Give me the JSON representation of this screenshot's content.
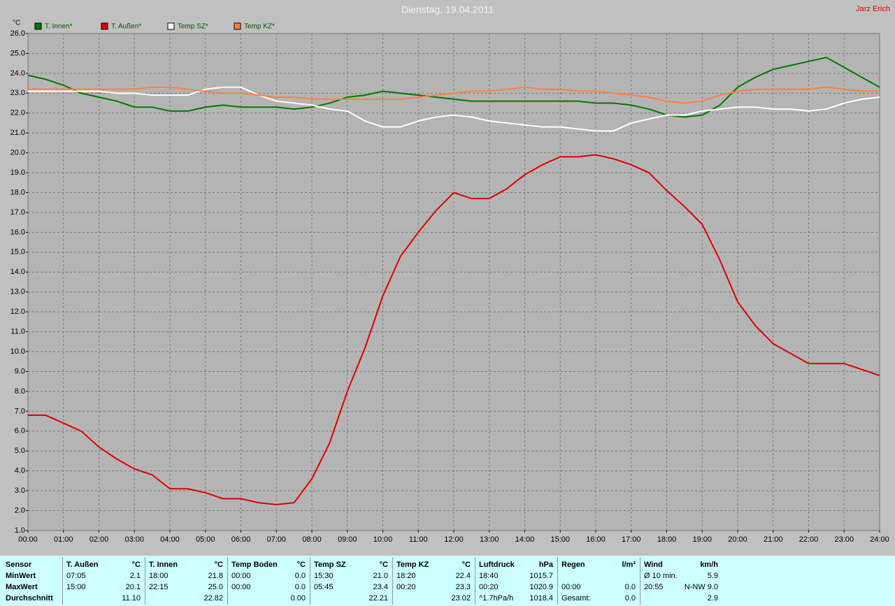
{
  "chart_data": {
    "type": "line",
    "title": "Dienstag, 19.04.2011",
    "author": "Jarz Erich",
    "y_label": "°C",
    "x": [
      0,
      0.5,
      1,
      1.5,
      2,
      2.5,
      3,
      3.5,
      4,
      4.5,
      5,
      5.5,
      6,
      6.5,
      7,
      7.5,
      8,
      8.5,
      9,
      9.5,
      10,
      10.5,
      11,
      11.5,
      12,
      12.5,
      13,
      13.5,
      14,
      14.5,
      15,
      15.5,
      16,
      16.5,
      17,
      17.5,
      18,
      18.5,
      19,
      19.5,
      20,
      20.5,
      21,
      21.5,
      22,
      22.5,
      23,
      23.5,
      24
    ],
    "series": [
      {
        "name": "T. Innen*",
        "color": "#007800",
        "values": [
          23.9,
          23.7,
          23.4,
          23.0,
          22.8,
          22.6,
          22.3,
          22.3,
          22.1,
          22.1,
          22.3,
          22.4,
          22.3,
          22.3,
          22.3,
          22.2,
          22.3,
          22.5,
          22.8,
          22.9,
          23.1,
          23.0,
          22.9,
          22.8,
          22.7,
          22.6,
          22.6,
          22.6,
          22.6,
          22.6,
          22.6,
          22.6,
          22.5,
          22.5,
          22.4,
          22.2,
          21.9,
          21.8,
          21.9,
          22.4,
          23.3,
          23.8,
          24.2,
          24.4,
          24.6,
          24.8,
          24.3,
          23.8,
          23.3
        ]
      },
      {
        "name": "T. Außen*",
        "color": "#e00000",
        "values": [
          6.8,
          6.8,
          6.4,
          6.0,
          5.2,
          4.6,
          4.1,
          3.8,
          3.1,
          3.1,
          2.9,
          2.6,
          2.6,
          2.4,
          2.3,
          2.4,
          3.6,
          5.4,
          8.0,
          10.2,
          12.8,
          14.8,
          16.0,
          17.1,
          18.0,
          17.7,
          17.7,
          18.2,
          18.9,
          19.4,
          19.8,
          19.8,
          19.9,
          19.7,
          19.4,
          19.0,
          18.1,
          17.3,
          16.4,
          14.6,
          12.5,
          11.3,
          10.4,
          9.9,
          9.4,
          9.4,
          9.4,
          9.1,
          8.8
        ]
      },
      {
        "name": "Temp SZ*",
        "color": "#ffffff",
        "values": [
          23.1,
          23.1,
          23.1,
          23.1,
          23.1,
          23.0,
          23.0,
          22.9,
          22.9,
          22.9,
          23.2,
          23.3,
          23.3,
          22.9,
          22.6,
          22.5,
          22.4,
          22.2,
          22.1,
          21.6,
          21.3,
          21.3,
          21.6,
          21.8,
          21.9,
          21.8,
          21.6,
          21.5,
          21.4,
          21.3,
          21.3,
          21.2,
          21.1,
          21.1,
          21.5,
          21.7,
          21.9,
          21.9,
          22.1,
          22.2,
          22.3,
          22.3,
          22.2,
          22.2,
          22.1,
          22.2,
          22.5,
          22.7,
          22.8
        ]
      },
      {
        "name": "Temp KZ*",
        "color": "#ff8040",
        "values": [
          23.2,
          23.2,
          23.2,
          23.2,
          23.2,
          23.2,
          23.2,
          23.3,
          23.3,
          23.2,
          23.1,
          23.0,
          23.0,
          22.9,
          22.8,
          22.8,
          22.7,
          22.7,
          22.7,
          22.7,
          22.7,
          22.7,
          22.8,
          22.9,
          23.0,
          23.1,
          23.1,
          23.2,
          23.3,
          23.2,
          23.2,
          23.1,
          23.1,
          23.0,
          22.9,
          22.8,
          22.6,
          22.5,
          22.6,
          22.9,
          23.1,
          23.2,
          23.2,
          23.2,
          23.2,
          23.3,
          23.2,
          23.1,
          23.1
        ]
      }
    ],
    "xlim": [
      0,
      24
    ],
    "xticks": [
      {
        "value": 0,
        "label": "00:00"
      },
      {
        "value": 1,
        "label": "01:00"
      },
      {
        "value": 2,
        "label": "02:00"
      },
      {
        "value": 3,
        "label": "03:00"
      },
      {
        "value": 4,
        "label": "04:00"
      },
      {
        "value": 5,
        "label": "05:00"
      },
      {
        "value": 6,
        "label": "06:00"
      },
      {
        "value": 7,
        "label": "07:00"
      },
      {
        "value": 8,
        "label": "08:00"
      },
      {
        "value": 9,
        "label": "09:00"
      },
      {
        "value": 10,
        "label": "10:00"
      },
      {
        "value": 11,
        "label": "11:00"
      },
      {
        "value": 12,
        "label": "12:00"
      },
      {
        "value": 13,
        "label": "13:00"
      },
      {
        "value": 14,
        "label": "14:00"
      },
      {
        "value": 15,
        "label": "15:00"
      },
      {
        "value": 16,
        "label": "16:00"
      },
      {
        "value": 17,
        "label": "17:00"
      },
      {
        "value": 18,
        "label": "18:00"
      },
      {
        "value": 19,
        "label": "19:00"
      },
      {
        "value": 20,
        "label": "20:00"
      },
      {
        "value": 21,
        "label": "21:00"
      },
      {
        "value": 22,
        "label": "22:00"
      },
      {
        "value": 23,
        "label": "23:00"
      },
      {
        "value": 24,
        "label": "24:00"
      }
    ],
    "ylim": [
      1,
      26
    ],
    "yticks": [
      {
        "value": 1,
        "label": "1.0"
      },
      {
        "value": 2,
        "label": "2.0"
      },
      {
        "value": 3,
        "label": "3.0"
      },
      {
        "value": 4,
        "label": "4.0"
      },
      {
        "value": 5,
        "label": "5.0"
      },
      {
        "value": 6,
        "label": "6.0"
      },
      {
        "value": 7,
        "label": "7.0"
      },
      {
        "value": 8,
        "label": "8.0"
      },
      {
        "value": 9,
        "label": "9.0"
      },
      {
        "value": 10,
        "label": "10.0"
      },
      {
        "value": 11,
        "label": "11.0"
      },
      {
        "value": 12,
        "label": "12.0"
      },
      {
        "value": 13,
        "label": "13.0"
      },
      {
        "value": 14,
        "label": "14.0"
      },
      {
        "value": 15,
        "label": "15.0"
      },
      {
        "value": 16,
        "label": "16.0"
      },
      {
        "value": 17,
        "label": "17.0"
      },
      {
        "value": 18,
        "label": "18.0"
      },
      {
        "value": 19,
        "label": "19.0"
      },
      {
        "value": 20,
        "label": "20.0"
      },
      {
        "value": 21,
        "label": "21.0"
      },
      {
        "value": 22,
        "label": "22.0"
      },
      {
        "value": 23,
        "label": "23.0"
      },
      {
        "value": 24,
        "label": "24.0"
      },
      {
        "value": 25,
        "label": "25.0"
      },
      {
        "value": 26,
        "label": "26.0"
      }
    ],
    "grid": true
  },
  "stats": {
    "row_labels": [
      "Sensor",
      "MinWert",
      "MaxWert",
      "Durchschnitt"
    ],
    "columns": [
      {
        "name": "T. Außen",
        "unit": "°C",
        "min": {
          "time": "07:05",
          "value": "2.1"
        },
        "max": {
          "time": "15:00",
          "value": "20.1"
        },
        "avg": {
          "value": "11.10"
        }
      },
      {
        "name": "T. Innen",
        "unit": "°C",
        "min": {
          "time": "18:00",
          "value": "21.8"
        },
        "max": {
          "time": "22:15",
          "value": "25.0"
        },
        "avg": {
          "value": "22.82"
        }
      },
      {
        "name": "Temp Boden",
        "unit": "°C",
        "min": {
          "time": "00:00",
          "value": "0.0"
        },
        "max": {
          "time": "00:00",
          "value": "0.0"
        },
        "avg": {
          "value": "0.00"
        }
      },
      {
        "name": "Temp SZ",
        "unit": "°C",
        "min": {
          "time": "15:30",
          "value": "21.0"
        },
        "max": {
          "time": "05:45",
          "value": "23.4"
        },
        "avg": {
          "value": "22.21"
        }
      },
      {
        "name": "Temp KZ",
        "unit": "°C",
        "min": {
          "time": "18:20",
          "value": "22.4"
        },
        "max": {
          "time": "00:20",
          "value": "23.3"
        },
        "avg": {
          "value": "23.02"
        }
      },
      {
        "name": "Luftdruck",
        "unit": "hPa",
        "min": {
          "time": "18:40",
          "value": "1015.7"
        },
        "max": {
          "time": "00:20",
          "value": "1020.9"
        },
        "avg": {
          "time": "^1.7hPa/h",
          "value": "1018.4"
        }
      },
      {
        "name": "Regen",
        "unit": "l/m²",
        "max": {
          "time": "00:00",
          "value": "0.0"
        },
        "avg": {
          "time": "Gesamt:",
          "value": "0.0"
        }
      },
      {
        "name": "Wind",
        "unit": "km/h",
        "min": {
          "time": "Ø 10 min.",
          "value": "5.9"
        },
        "max": {
          "time": "20:55",
          "value": "N-NW 9.0"
        },
        "avg": {
          "value": "2.9"
        }
      }
    ]
  }
}
